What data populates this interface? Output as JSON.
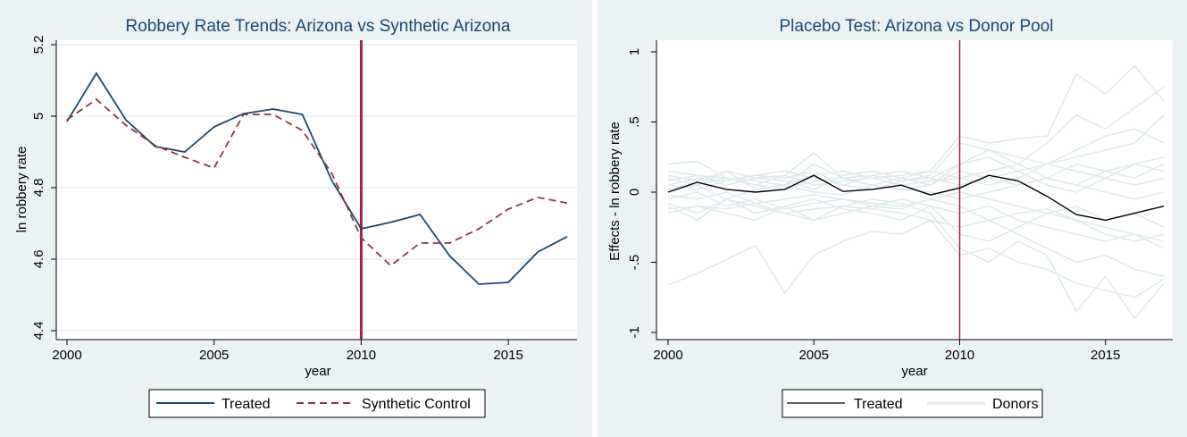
{
  "chart_data": [
    {
      "type": "line",
      "title": "Robbery Rate Trends: Arizona vs Synthetic Arizona",
      "xlabel": "year",
      "ylabel": "ln robbery rate",
      "xlim": [
        2000,
        2017
      ],
      "ylim": [
        4.4,
        5.2
      ],
      "xticks": [
        2000,
        2005,
        2010,
        2015
      ],
      "yticks": [
        4.4,
        4.6,
        4.8,
        5,
        5.2
      ],
      "vline": 2010,
      "grid": true,
      "legend": "bottom",
      "x": [
        2000,
        2001,
        2002,
        2003,
        2004,
        2005,
        2006,
        2007,
        2008,
        2009,
        2010,
        2011,
        2012,
        2013,
        2014,
        2015,
        2016,
        2017
      ],
      "series": [
        {
          "name": "Treated",
          "style": "solid",
          "color": "#1a476f",
          "values": [
            4.985,
            5.12,
            4.99,
            4.915,
            4.9,
            4.97,
            5.007,
            5.02,
            5.005,
            4.82,
            4.685,
            4.703,
            4.725,
            4.61,
            4.53,
            4.535,
            4.62,
            4.663
          ]
        },
        {
          "name": "Synthetic Control",
          "style": "dashed",
          "color": "#90353b",
          "values": [
            4.99,
            5.047,
            4.975,
            4.918,
            4.885,
            4.855,
            5.005,
            5.005,
            4.96,
            4.84,
            4.66,
            4.582,
            4.645,
            4.645,
            4.685,
            4.74,
            4.773,
            4.757
          ]
        }
      ]
    },
    {
      "type": "line",
      "title": "Placebo Test: Arizona vs Donor Pool",
      "xlabel": "year",
      "ylabel": "Effects - ln robbery rate",
      "xlim": [
        2000,
        2017
      ],
      "ylim": [
        -1,
        1
      ],
      "xticks": [
        2000,
        2005,
        2010,
        2015
      ],
      "yticks": [
        -1,
        -0.5,
        0,
        0.5,
        1
      ],
      "ytick_labels": [
        "-1",
        "-.5",
        "0",
        ".5",
        "1"
      ],
      "vline": 2010,
      "grid": false,
      "legend": "bottom",
      "x": [
        2000,
        2001,
        2002,
        2003,
        2004,
        2005,
        2006,
        2007,
        2008,
        2009,
        2010,
        2011,
        2012,
        2013,
        2014,
        2015,
        2016,
        2017
      ],
      "treated": {
        "name": "Treated",
        "color": "#000000",
        "values": [
          0,
          0.07,
          0.02,
          0,
          0.02,
          0.12,
          0.005,
          0.02,
          0.05,
          -0.02,
          0.03,
          0.12,
          0.08,
          -0.03,
          -0.16,
          -0.2,
          -0.15,
          -0.1
        ]
      },
      "donors_name": "Donors",
      "donors_color": "#dfeaec",
      "donors": [
        [
          -0.66,
          -0.58,
          -0.48,
          -0.38,
          -0.72,
          -0.45,
          -0.35,
          -0.28,
          -0.3,
          -0.2,
          -0.25,
          -0.2,
          -0.15,
          -0.12,
          -0.2,
          -0.25,
          -0.3,
          -0.35
        ],
        [
          0.2,
          0.22,
          0.1,
          0.05,
          0.12,
          0.28,
          0.1,
          0.05,
          0.1,
          0.15,
          0.4,
          0.35,
          0.38,
          0.4,
          0.84,
          0.7,
          0.9,
          0.65
        ],
        [
          0.1,
          0.05,
          0.15,
          0.02,
          0.05,
          0.2,
          0.1,
          0.12,
          0.08,
          0.1,
          0.2,
          0.3,
          0.2,
          0.35,
          0.55,
          0.45,
          0.6,
          0.75
        ],
        [
          -0.1,
          -0.2,
          -0.05,
          -0.15,
          -0.1,
          -0.2,
          -0.1,
          -0.05,
          -0.08,
          -0.15,
          -0.4,
          -0.5,
          -0.35,
          -0.45,
          -0.85,
          -0.6,
          -0.9,
          -0.65
        ],
        [
          0.05,
          0.1,
          0.08,
          0.12,
          0.15,
          0.1,
          0.05,
          0.12,
          0.15,
          0.1,
          0.05,
          0.1,
          0.15,
          0.2,
          0.25,
          0.3,
          0.35,
          0.55
        ],
        [
          -0.05,
          0,
          -0.1,
          -0.05,
          -0.12,
          -0.08,
          -0.05,
          -0.1,
          -0.12,
          -0.05,
          -0.1,
          -0.2,
          -0.3,
          -0.4,
          -0.5,
          -0.45,
          -0.55,
          -0.6
        ],
        [
          0.15,
          0.12,
          0.1,
          0.08,
          0.05,
          0.12,
          0.15,
          0.1,
          0.05,
          0.08,
          0.1,
          0.15,
          0.2,
          0.1,
          0.05,
          0.15,
          0.2,
          0.25
        ],
        [
          -0.12,
          -0.1,
          -0.15,
          -0.2,
          -0.1,
          -0.05,
          -0.12,
          -0.15,
          -0.2,
          -0.1,
          -0.15,
          -0.1,
          -0.2,
          -0.25,
          -0.3,
          -0.35,
          -0.3,
          -0.4
        ],
        [
          0.02,
          0.05,
          0.1,
          0.05,
          0.02,
          0.08,
          0.1,
          0.05,
          0.02,
          0.05,
          0.15,
          0.1,
          0.05,
          0.1,
          0.2,
          0.15,
          0.1,
          0.2
        ],
        [
          -0.02,
          -0.05,
          0,
          -0.08,
          -0.05,
          -0.02,
          -0.05,
          -0.08,
          -0.1,
          -0.05,
          0,
          -0.05,
          -0.1,
          -0.15,
          -0.1,
          -0.2,
          -0.15,
          -0.25
        ],
        [
          0.08,
          0.12,
          0.05,
          0.1,
          0.08,
          0.02,
          0.12,
          0.15,
          0.1,
          0.05,
          0.2,
          0.25,
          0.15,
          0.05,
          0,
          0.1,
          0.2,
          0.15
        ],
        [
          -0.08,
          -0.15,
          -0.05,
          -0.1,
          -0.15,
          -0.2,
          -0.15,
          -0.1,
          -0.05,
          -0.1,
          -0.3,
          -0.35,
          -0.25,
          -0.15,
          -0.2,
          -0.3,
          -0.35,
          -0.3
        ],
        [
          0.12,
          0.08,
          0.15,
          0.1,
          0.12,
          0.05,
          0.08,
          0.1,
          0.12,
          0.15,
          0.1,
          0.05,
          0.1,
          0.2,
          0.3,
          0.4,
          0.45,
          0.35
        ],
        [
          -0.15,
          -0.1,
          -0.12,
          -0.08,
          -0.15,
          -0.12,
          -0.1,
          -0.12,
          -0.15,
          -0.2,
          -0.45,
          -0.4,
          -0.5,
          -0.55,
          -0.65,
          -0.7,
          -0.75,
          -0.62
        ],
        [
          0.05,
          0.02,
          0.08,
          0.12,
          0.1,
          0.15,
          0.05,
          0.02,
          0.08,
          0.12,
          0.35,
          0.3,
          0.25,
          0.2,
          0.15,
          0.1,
          0.05,
          0.1
        ],
        [
          0,
          0.05,
          -0.05,
          0.02,
          0.05,
          0,
          -0.02,
          0.05,
          0.02,
          0,
          -0.05,
          0,
          0.05,
          0.1,
          0.05,
          0,
          -0.05,
          0
        ]
      ]
    }
  ]
}
